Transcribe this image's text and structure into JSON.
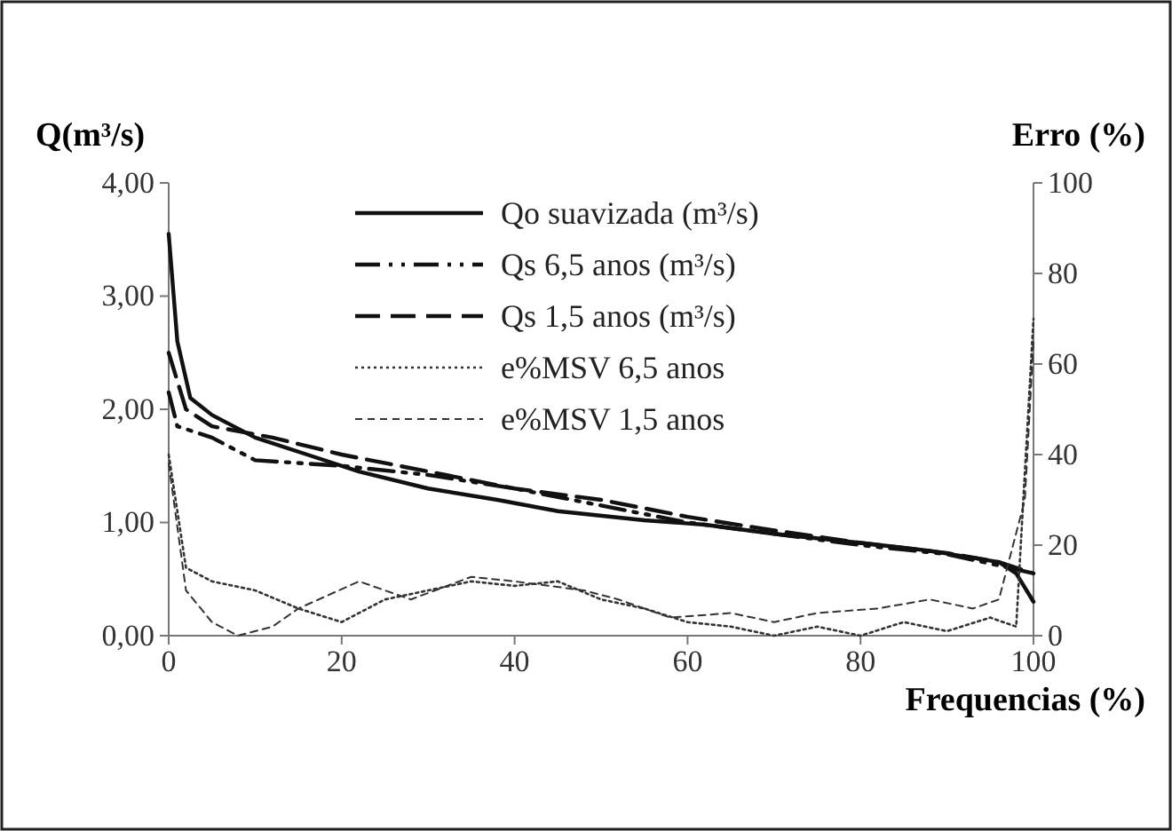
{
  "chart_data": {
    "type": "line",
    "xlabel": "Frequencias (%)",
    "ylabel": "Q(m³/s)",
    "y2label": "Erro (%)",
    "xlim": [
      0,
      100
    ],
    "xticks": [
      0,
      20,
      40,
      60,
      80,
      100
    ],
    "ylim": [
      0,
      4
    ],
    "yticks": [
      {
        "value": 0,
        "label": "0,00"
      },
      {
        "value": 1,
        "label": "1,00"
      },
      {
        "value": 2,
        "label": "2,00"
      },
      {
        "value": 3,
        "label": "3,00"
      },
      {
        "value": 4,
        "label": "4,00"
      }
    ],
    "y2lim": [
      0,
      100
    ],
    "y2ticks": [
      0,
      20,
      40,
      60,
      80,
      100
    ],
    "legend": "top",
    "grid": false,
    "series": [
      {
        "name": "Qo suavizada (m³/s)",
        "color": "#111111",
        "line_style": "solid",
        "x": [
          0,
          1,
          2.5,
          5,
          10,
          16,
          22,
          30,
          38,
          45,
          55,
          62,
          70,
          80,
          88,
          96,
          98,
          100
        ],
        "values": [
          3.55,
          2.6,
          2.1,
          1.95,
          1.75,
          1.6,
          1.45,
          1.3,
          1.2,
          1.1,
          1.02,
          0.98,
          0.9,
          0.82,
          0.75,
          0.65,
          0.55,
          0.3
        ]
      },
      {
        "name": "Qs 6,5 anos (m³/s)",
        "color": "#111111",
        "line_style": "dashdot",
        "x": [
          0,
          1,
          5,
          10,
          20,
          30,
          40,
          50,
          60,
          70,
          80,
          90,
          96,
          100
        ],
        "values": [
          2.15,
          1.85,
          1.75,
          1.55,
          1.5,
          1.42,
          1.3,
          1.15,
          1.0,
          0.9,
          0.8,
          0.72,
          0.62,
          0.55
        ]
      },
      {
        "name": "Qs 1,5 anos (m³/s)",
        "color": "#111111",
        "line_style": "dashed",
        "x": [
          0,
          2,
          5,
          12,
          20,
          30,
          40,
          50,
          60,
          70,
          80,
          90,
          96,
          100
        ],
        "values": [
          2.5,
          2.0,
          1.85,
          1.75,
          1.6,
          1.45,
          1.3,
          1.2,
          1.05,
          0.93,
          0.82,
          0.73,
          0.65,
          0.55
        ]
      },
      {
        "name": "e%MSV 6,5 anos",
        "color": "#333333",
        "line_style": "dotted",
        "axis": "y2",
        "x": [
          0,
          2,
          5,
          10,
          15,
          20,
          25,
          30,
          35,
          40,
          45,
          50,
          55,
          60,
          65,
          70,
          75,
          80,
          85,
          90,
          95,
          98,
          100
        ],
        "values": [
          40,
          15,
          12,
          10,
          6,
          3,
          8,
          10,
          12,
          11,
          12,
          8,
          6,
          3,
          2,
          0,
          2,
          0,
          3,
          1,
          4,
          2,
          70
        ]
      },
      {
        "name": "e%MSV 1,5 anos",
        "color": "#333333",
        "line_style": "shortdash",
        "axis": "y2",
        "x": [
          0,
          2,
          5,
          8,
          12,
          15,
          22,
          28,
          35,
          40,
          48,
          52,
          58,
          65,
          70,
          75,
          82,
          88,
          93,
          96,
          99,
          100
        ],
        "values": [
          38,
          10,
          3,
          0,
          2,
          6,
          12,
          8,
          13,
          12,
          10,
          8,
          4,
          5,
          3,
          5,
          6,
          8,
          6,
          8,
          30,
          65
        ]
      }
    ]
  }
}
